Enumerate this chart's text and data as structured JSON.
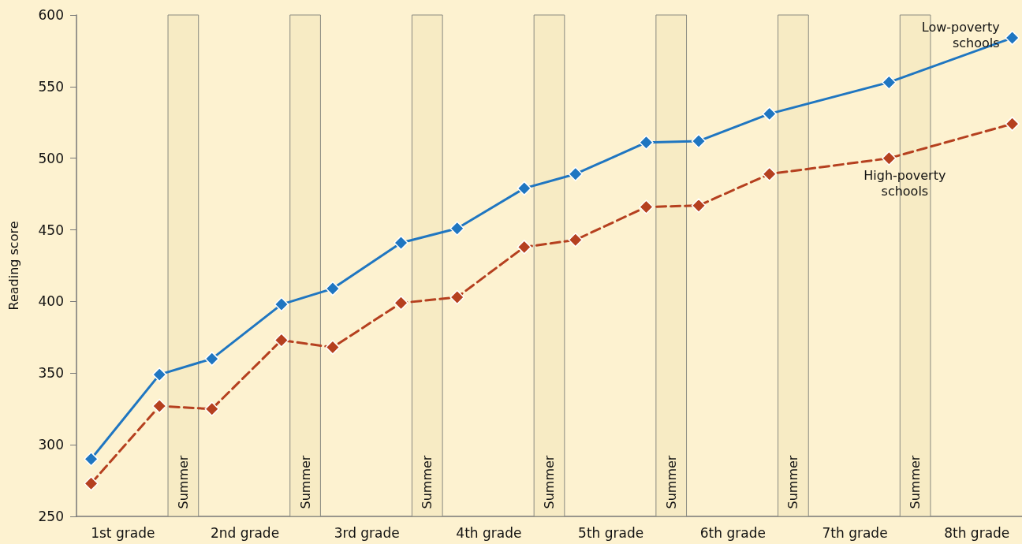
{
  "chart_data": {
    "type": "line",
    "ylabel": "Reading score",
    "xlim": [
      1,
      8.75
    ],
    "ylim": [
      250,
      600
    ],
    "xticks": [
      {
        "value": 1.38,
        "label": "1st grade"
      },
      {
        "value": 2.38,
        "label": "2nd grade"
      },
      {
        "value": 3.38,
        "label": "3rd grade"
      },
      {
        "value": 4.38,
        "label": "4th grade"
      },
      {
        "value": 5.38,
        "label": "5th grade"
      },
      {
        "value": 6.38,
        "label": "6th grade"
      },
      {
        "value": 7.38,
        "label": "7th grade"
      },
      {
        "value": 8.38,
        "label": "8th grade"
      }
    ],
    "yticks": [
      250,
      300,
      350,
      400,
      450,
      500,
      550,
      600
    ],
    "x": [
      1.12,
      1.68,
      2.11,
      2.68,
      3.1,
      3.66,
      4.12,
      4.67,
      5.09,
      5.67,
      6.1,
      6.68,
      7.66,
      8.67
    ],
    "series": [
      {
        "name": "Low-poverty schools",
        "color": "#1f76c1",
        "line_style": "solid",
        "values": [
          290,
          349,
          360,
          398,
          409,
          441,
          451,
          479,
          489,
          511,
          512,
          531,
          553,
          584
        ]
      },
      {
        "name": "High-poverty schools",
        "color": "#b5401f",
        "line_style": "dashed",
        "values": [
          273,
          327,
          325,
          373,
          368,
          399,
          403,
          438,
          443,
          466,
          467,
          489,
          500,
          524
        ]
      }
    ],
    "bands": [
      {
        "axis": "x",
        "from": 1.75,
        "to": 2,
        "label": "Summer",
        "color": "#f7ebc4"
      },
      {
        "axis": "x",
        "from": 2.75,
        "to": 3,
        "label": "Summer",
        "color": "#f7ebc4"
      },
      {
        "axis": "x",
        "from": 3.75,
        "to": 4,
        "label": "Summer",
        "color": "#f7ebc4"
      },
      {
        "axis": "x",
        "from": 4.75,
        "to": 5,
        "label": "Summer",
        "color": "#f7ebc4"
      },
      {
        "axis": "x",
        "from": 5.75,
        "to": 6,
        "label": "Summer",
        "color": "#f7ebc4"
      },
      {
        "axis": "x",
        "from": 6.75,
        "to": 7,
        "label": "Summer",
        "color": "#f7ebc4"
      },
      {
        "axis": "x",
        "from": 7.75,
        "to": 8,
        "label": "Summer",
        "color": "#f7ebc4"
      }
    ],
    "marker": "diamond",
    "grid": false,
    "legend": false
  }
}
